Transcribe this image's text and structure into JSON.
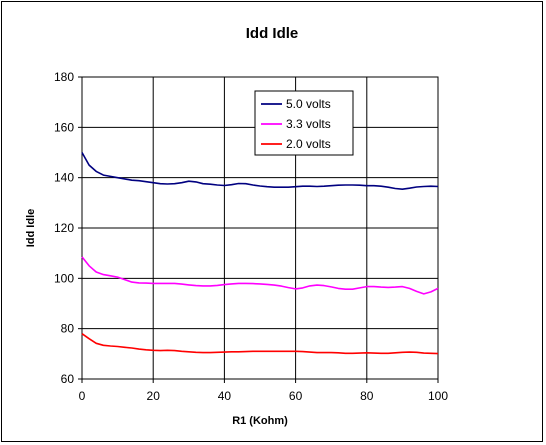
{
  "chart_data": {
    "type": "line",
    "title": "Idd Idle",
    "xlabel": "R1 (Kohm)",
    "ylabel": "Idd Idle",
    "xlim": [
      0,
      100
    ],
    "ylim": [
      60,
      180
    ],
    "xticks": [
      0,
      20,
      40,
      60,
      80,
      100
    ],
    "yticks": [
      60,
      80,
      100,
      120,
      140,
      160,
      180
    ],
    "grid": true,
    "legend_position": "top-center",
    "x": [
      0,
      2,
      4,
      6,
      8,
      10,
      12,
      14,
      16,
      18,
      20,
      22,
      24,
      26,
      28,
      30,
      32,
      34,
      36,
      38,
      40,
      42,
      44,
      46,
      48,
      50,
      52,
      54,
      56,
      58,
      60,
      62,
      64,
      66,
      68,
      70,
      72,
      74,
      76,
      78,
      80,
      82,
      84,
      86,
      88,
      90,
      92,
      94,
      96,
      98,
      100
    ],
    "series": [
      {
        "name": "5.0 volts",
        "color": "#000080",
        "values": [
          150,
          145,
          142.5,
          141,
          140.5,
          140,
          139.5,
          139,
          138.8,
          138.4,
          138,
          137.6,
          137.5,
          137.6,
          138,
          138.6,
          138.3,
          137.6,
          137.4,
          137.1,
          136.9,
          137.2,
          137.7,
          137.6,
          137.1,
          136.7,
          136.4,
          136.2,
          136.2,
          136.2,
          136.4,
          136.6,
          136.6,
          136.5,
          136.6,
          136.8,
          137,
          137.1,
          137.1,
          137,
          136.8,
          136.8,
          136.6,
          136.2,
          135.7,
          135.4,
          135.8,
          136.3,
          136.5,
          136.6,
          136.5
        ]
      },
      {
        "name": "3.3 volts",
        "color": "#ff00ff",
        "values": [
          108.5,
          105,
          102.5,
          101.5,
          101,
          100.5,
          99.5,
          98.5,
          98.2,
          98.1,
          98,
          98,
          98,
          98,
          97.7,
          97.4,
          97.1,
          97,
          97,
          97.2,
          97.5,
          97.8,
          98,
          98,
          97.9,
          97.8,
          97.6,
          97.3,
          96.9,
          96.3,
          95.8,
          96.2,
          97,
          97.3,
          97.1,
          96.6,
          96,
          95.7,
          95.7,
          96.2,
          96.7,
          96.7,
          96.5,
          96.4,
          96.5,
          96.7,
          96,
          94.8,
          93.8,
          94.6,
          96
        ]
      },
      {
        "name": "2.0 volts",
        "color": "#ff0000",
        "values": [
          78,
          76,
          74.2,
          73.4,
          73.1,
          72.9,
          72.6,
          72.3,
          71.9,
          71.6,
          71.4,
          71.3,
          71.4,
          71.3,
          71,
          70.8,
          70.6,
          70.5,
          70.5,
          70.6,
          70.7,
          70.8,
          70.8,
          70.9,
          71,
          71,
          71,
          71,
          71,
          71,
          71,
          70.9,
          70.7,
          70.5,
          70.5,
          70.5,
          70.4,
          70.2,
          70.2,
          70.3,
          70.4,
          70.3,
          70.2,
          70.2,
          70.4,
          70.6,
          70.7,
          70.6,
          70.3,
          70.2,
          70.1
        ]
      }
    ]
  }
}
